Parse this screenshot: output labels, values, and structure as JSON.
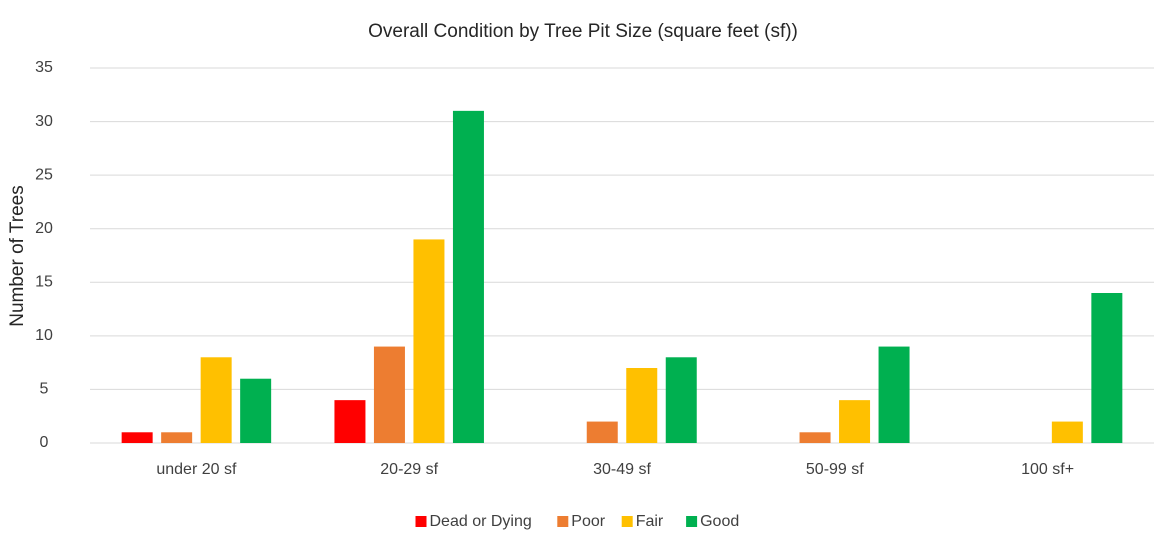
{
  "chart_data": {
    "type": "bar",
    "title": "Overall Condition by Tree Pit Size (square feet (sf))",
    "y_label": "Number of Trees",
    "categories": [
      "under 20 sf",
      "20-29 sf",
      "30-49 sf",
      "50-99 sf",
      "100 sf+"
    ],
    "series": [
      {
        "name": "Dead or Dying",
        "color": "#ff0000",
        "values": [
          1,
          4,
          0,
          0,
          0
        ]
      },
      {
        "name": "Poor",
        "color": "#ed7d31",
        "values": [
          1,
          9,
          2,
          1,
          0
        ]
      },
      {
        "name": "Fair",
        "color": "#ffc000",
        "values": [
          8,
          19,
          7,
          4,
          2
        ]
      },
      {
        "name": "Good",
        "color": "#00b050",
        "values": [
          6,
          31,
          8,
          9,
          14
        ]
      }
    ],
    "ylim": [
      0,
      35
    ],
    "yticks": [
      0,
      5,
      10,
      15,
      20,
      25,
      30,
      35
    ],
    "grid": true,
    "legend": "bottom"
  }
}
